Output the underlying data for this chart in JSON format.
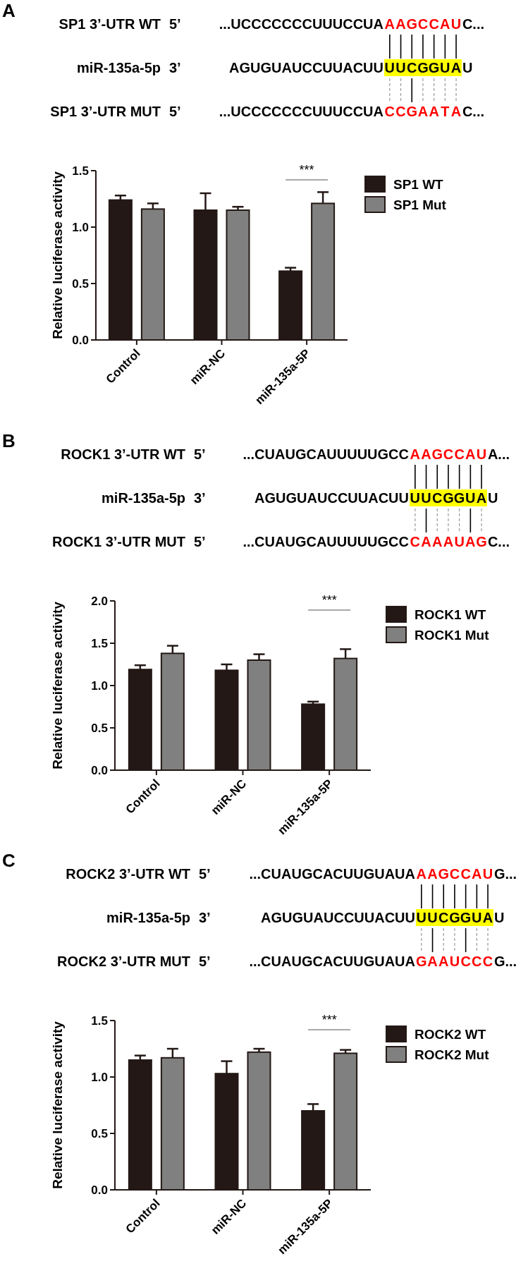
{
  "chart_data": [
    {
      "type": "bar",
      "ylabel": "Relative luciferase activity",
      "categories": [
        "Control",
        "miR-NC",
        "miR-135a-5P"
      ],
      "series": [
        {
          "name": "SP1 WT",
          "color": "#231815",
          "values": [
            1.24,
            1.15,
            0.61
          ],
          "errors": [
            0.04,
            0.15,
            0.03
          ]
        },
        {
          "name": "SP1 Mut",
          "color": "#808080",
          "values": [
            1.16,
            1.15,
            1.21
          ],
          "errors": [
            0.05,
            0.03,
            0.1
          ]
        }
      ],
      "ylim": [
        0,
        1.5
      ],
      "yticks": [
        {
          "value": 0,
          "label": "0.0"
        },
        {
          "value": 0.5,
          "label": "0.5"
        },
        {
          "value": 1,
          "label": "1.0"
        },
        {
          "value": 1.5,
          "label": "1.5"
        }
      ],
      "legend": "right",
      "annotations": [
        "A",
        "SP1 3’-UTR WT",
        "5’",
        "...UCCCCCCCUUUCCUA",
        "AAGCCAU",
        "C...",
        "miR-135a-5p",
        "3’",
        "AGUGUAUCCUUACUU",
        "UUCGGUA",
        "U",
        "SP1 3’-UTR MUT",
        "5’",
        "...UCCCCCCCUUUCCUA",
        "CCGAATA",
        "C...",
        "***"
      ]
    },
    {
      "type": "bar",
      "ylabel": "Relative luciferase activity",
      "categories": [
        "Control",
        "miR-NC",
        "miR-135a-5P"
      ],
      "series": [
        {
          "name": "ROCK1 WT",
          "color": "#231815",
          "values": [
            1.19,
            1.18,
            0.78
          ],
          "errors": [
            0.05,
            0.07,
            0.03
          ]
        },
        {
          "name": "ROCK1 Mut",
          "color": "#808080",
          "values": [
            1.38,
            1.3,
            1.32
          ],
          "errors": [
            0.09,
            0.07,
            0.11
          ]
        }
      ],
      "ylim": [
        0,
        2
      ],
      "yticks": [
        {
          "value": 0,
          "label": "0.0"
        },
        {
          "value": 0.5,
          "label": "0.5"
        },
        {
          "value": 1,
          "label": "1.0"
        },
        {
          "value": 1.5,
          "label": "1.5"
        },
        {
          "value": 2,
          "label": "2.0"
        }
      ],
      "legend": "right",
      "annotations": [
        "B",
        "ROCK1 3’-UTR WT",
        "5’",
        "...CUAUGCAUUUUUGCC",
        "AAGCCAU",
        "A...",
        "miR-135a-5p",
        "3’",
        "AGUGUAUCCUUACUU",
        "UUCGGUA",
        "U",
        "ROCK1 3’-UTR MUT",
        "5’",
        "...CUAUGCAUUUUUGCC",
        "CAAAUAG",
        "C...",
        "***"
      ]
    },
    {
      "type": "bar",
      "ylabel": "Relative luciferase activity",
      "categories": [
        "Control",
        "miR-NC",
        "miR-135a-5P"
      ],
      "series": [
        {
          "name": "ROCK2 WT",
          "color": "#231815",
          "values": [
            1.15,
            1.03,
            0.7
          ],
          "errors": [
            0.04,
            0.11,
            0.06
          ]
        },
        {
          "name": "ROCK2 Mut",
          "color": "#808080",
          "values": [
            1.17,
            1.22,
            1.21
          ],
          "errors": [
            0.08,
            0.03,
            0.03
          ]
        }
      ],
      "ylim": [
        0,
        1.5
      ],
      "yticks": [
        {
          "value": 0,
          "label": "0.0"
        },
        {
          "value": 0.5,
          "label": "0.5"
        },
        {
          "value": 1,
          "label": "1.0"
        },
        {
          "value": 1.5,
          "label": "1.5"
        }
      ],
      "legend": "right",
      "annotations": [
        "C",
        "ROCK2 3’-UTR WT",
        "5’",
        "...CUAUGCACUUGUAUA",
        "AAGCCAU",
        "G...",
        "miR-135a-5p",
        "3’",
        "AGUGUAUCCUUACUU",
        "UUCGGUA",
        "U",
        "ROCK2 3’-UTR MUT",
        "5’",
        "...CUAUGCACUUGUAUA",
        "GAAUCCC",
        "G...",
        "***"
      ]
    }
  ]
}
